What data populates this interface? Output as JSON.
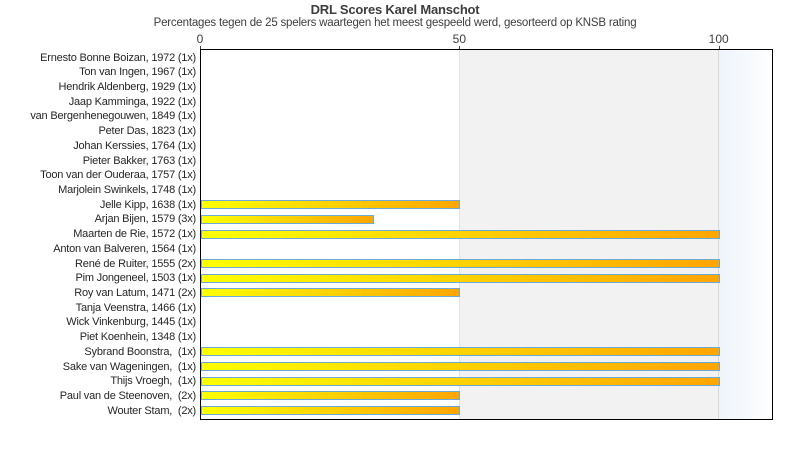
{
  "title": "DRL Scores Karel Manschot",
  "subtitle": "Percentages tegen de 25 spelers waartegen het meest gespeeld werd, gesorteerd op KNSB rating",
  "chart_data": {
    "type": "bar",
    "orientation": "horizontal",
    "title": "DRL Scores Karel Manschot",
    "subtitle": "Percentages tegen de 25 spelers waartegen het meest gespeeld werd, gesorteerd op KNSB rating",
    "xlabel": "",
    "ylabel": "",
    "xticks": [
      0,
      50,
      100
    ],
    "xlim": [
      0,
      110.5
    ],
    "grid": false,
    "legend": "none",
    "categories": [
      "Ernesto Bonne Boizan, 1972 (1x)",
      "Ton van Ingen, 1967 (1x)",
      "Hendrik Aldenberg, 1929 (1x)",
      "Jaap Kamminga, 1922 (1x)",
      "van Bergenhenegouwen, 1849 (1x)",
      "Peter Das, 1823 (1x)",
      "Johan Kerssies, 1764 (1x)",
      "Pieter Bakker, 1763 (1x)",
      "Toon van der Ouderaa, 1757 (1x)",
      "Marjolein Swinkels, 1748 (1x)",
      "Jelle Kipp, 1638 (1x)",
      "Arjan Bijen, 1579 (3x)",
      "Maarten de Rie, 1572 (1x)",
      "Anton van Balveren, 1564 (1x)",
      "René de Ruiter, 1555 (2x)",
      "Pim Jongeneel, 1503 (1x)",
      "Roy van Latum, 1471 (2x)",
      "Tanja Veenstra, 1466 (1x)",
      "Wick Vinkenburg, 1445 (1x)",
      "Piet Koenhein, 1348 (1x)",
      "Sybrand Boonstra,  (1x)",
      "Sake van Wageningen,  (1x)",
      "Thijs Vroegh,  (1x)",
      "Paul van de Steenoven,  (2x)",
      "Wouter Stam,  (2x)"
    ],
    "values": [
      0,
      0,
      0,
      0,
      0,
      0,
      0,
      0,
      0,
      0,
      50,
      33.3,
      100,
      0,
      100,
      100,
      50,
      0,
      0,
      0,
      100,
      100,
      100,
      50,
      50
    ],
    "bands": [
      {
        "name": "band-50-100",
        "from": 50,
        "to": 100,
        "fill": "solid",
        "color": "#f2f2f2",
        "edge_color": "#e3e3e3"
      },
      {
        "name": "band-over-100",
        "from": 100,
        "to": 110.5,
        "fill": "gradient",
        "color_start": "#edf4fb",
        "color_end": "#ffffff",
        "edge_color": "#d8d8d8"
      }
    ],
    "bar_style": {
      "gradient_start": "#ffff00",
      "gradient_end": "#ffa500",
      "border_color": "#6aaad4"
    },
    "plot_border_color": "#000000",
    "text_color": "#3d3d3d"
  }
}
